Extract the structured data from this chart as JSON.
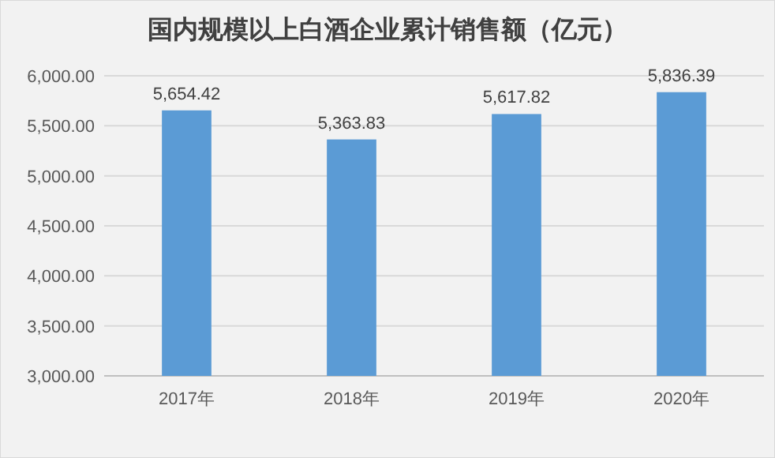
{
  "chart_data": {
    "type": "bar",
    "title": "国内规模以上白酒企业累计销售额（亿元）",
    "categories": [
      "2017年",
      "2018年",
      "2019年",
      "2020年"
    ],
    "values": [
      5654.42,
      5363.83,
      5617.82,
      5836.39
    ],
    "color": "#5b9bd5",
    "ylim": [
      3000,
      6000
    ],
    "yticks": [
      {
        "value": 3000,
        "label": "3,000.00"
      },
      {
        "value": 3500,
        "label": "3,500.00"
      },
      {
        "value": 4000,
        "label": "4,000.00"
      },
      {
        "value": 4500,
        "label": "4,500.00"
      },
      {
        "value": 5000,
        "label": "5,000.00"
      },
      {
        "value": 5500,
        "label": "5,500.00"
      },
      {
        "value": 6000,
        "label": "6,000.00"
      }
    ],
    "grid": "y",
    "value_labels": [
      "5,654.42",
      "5,363.83",
      "5,617.82",
      "5,836.39"
    ]
  }
}
